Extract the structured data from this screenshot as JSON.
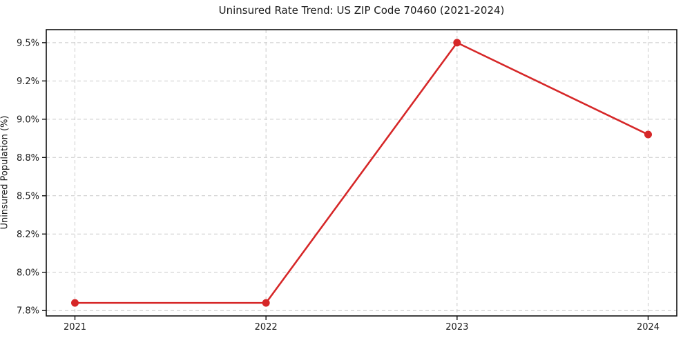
{
  "chart_data": {
    "type": "line",
    "title": "Uninsured Rate Trend: US ZIP Code 70460 (2021-2024)",
    "xlabel": "",
    "ylabel": "Uninsured Population (%)",
    "x": [
      2021,
      2022,
      2023,
      2024
    ],
    "series": [
      {
        "name": "Uninsured Population (%)",
        "values": [
          7.8,
          7.8,
          9.5,
          8.9
        ]
      }
    ],
    "x_ticks": [
      {
        "value": 2021,
        "label": "2021"
      },
      {
        "value": 2022,
        "label": "2022"
      },
      {
        "value": 2023,
        "label": "2023"
      },
      {
        "value": 2024,
        "label": "2024"
      }
    ],
    "y_ticks": [
      {
        "value": 7.75,
        "label": "7.8%"
      },
      {
        "value": 8.0,
        "label": "8.0%"
      },
      {
        "value": 8.25,
        "label": "8.2%"
      },
      {
        "value": 8.5,
        "label": "8.5%"
      },
      {
        "value": 8.75,
        "label": "8.8%"
      },
      {
        "value": 9.0,
        "label": "9.0%"
      },
      {
        "value": 9.25,
        "label": "9.2%"
      },
      {
        "value": 9.5,
        "label": "9.5%"
      }
    ],
    "xlim": [
      2020.85,
      2024.15
    ],
    "ylim": [
      7.715,
      9.585
    ],
    "grid": true,
    "legend": "none",
    "colors": {
      "line": "#d62728",
      "marker": "#d62728",
      "grid": "#c9c9c9",
      "spine": "#111111",
      "text": "#1a1a1a",
      "background": "#ffffff"
    }
  }
}
